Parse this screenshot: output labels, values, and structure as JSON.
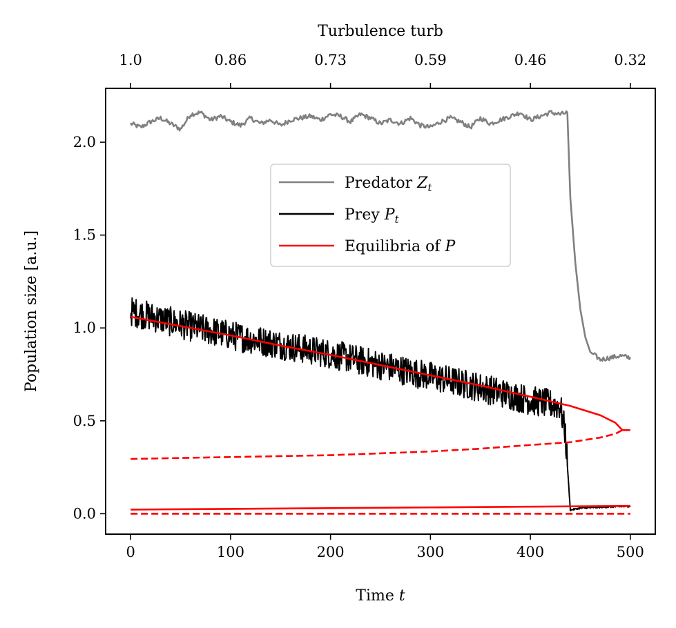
{
  "chart_data": {
    "type": "line",
    "xlabel": "Time",
    "xlabel_var": "t",
    "ylabel": "Population size [a.u.]",
    "top_xlabel": "Turbulence turb",
    "xlim": [
      -25,
      525
    ],
    "ylim": [
      -0.11,
      2.29
    ],
    "x_ticks": [
      0,
      100,
      200,
      300,
      400,
      500
    ],
    "x_tick_labels": [
      "0",
      "100",
      "200",
      "300",
      "400",
      "500"
    ],
    "y_ticks": [
      0.0,
      0.5,
      1.0,
      1.5,
      2.0
    ],
    "y_tick_labels": [
      "0.0",
      "0.5",
      "1.0",
      "1.5",
      "2.0"
    ],
    "top_x_ticks": [
      0,
      100,
      200,
      300,
      400,
      500
    ],
    "top_x_tick_labels": [
      "1.0",
      "0.86",
      "0.73",
      "0.59",
      "0.46",
      "0.32"
    ],
    "legend": {
      "placement": "upper-center",
      "entries": [
        {
          "label": "Predator",
          "var": "Z",
          "sub": "t",
          "color": "#808080",
          "style": "solid"
        },
        {
          "label": "Prey",
          "var": "P",
          "sub": "t",
          "color": "#000000",
          "style": "solid"
        },
        {
          "label": "Equilibria of",
          "var": "P",
          "sub": "",
          "color": "#ff0000",
          "style": "solid"
        }
      ]
    },
    "grid": false,
    "series": [
      {
        "name": "Predator Z_t",
        "color": "#808080",
        "x": [
          0,
          10,
          20,
          30,
          40,
          50,
          60,
          70,
          80,
          90,
          100,
          110,
          120,
          130,
          140,
          150,
          160,
          170,
          180,
          190,
          200,
          210,
          220,
          230,
          240,
          250,
          260,
          270,
          280,
          290,
          300,
          310,
          320,
          330,
          340,
          350,
          360,
          370,
          380,
          390,
          400,
          410,
          420,
          430,
          437,
          440,
          445,
          450,
          455,
          460,
          465,
          470,
          480,
          490,
          500
        ],
        "y": [
          2.1,
          2.08,
          2.11,
          2.13,
          2.1,
          2.07,
          2.15,
          2.16,
          2.12,
          2.14,
          2.11,
          2.09,
          2.13,
          2.1,
          2.12,
          2.09,
          2.12,
          2.13,
          2.14,
          2.12,
          2.15,
          2.14,
          2.11,
          2.15,
          2.13,
          2.1,
          2.12,
          2.1,
          2.13,
          2.09,
          2.08,
          2.11,
          2.13,
          2.11,
          2.08,
          2.13,
          2.1,
          2.12,
          2.14,
          2.16,
          2.12,
          2.14,
          2.16,
          2.15,
          2.16,
          1.7,
          1.35,
          1.1,
          0.95,
          0.87,
          0.85,
          0.83,
          0.84,
          0.85,
          0.84
        ]
      },
      {
        "name": "Prey P_t",
        "color": "#000000",
        "noisy": true,
        "noise_amplitude": 0.08,
        "x": [
          0,
          50,
          100,
          150,
          200,
          250,
          300,
          350,
          400,
          430,
          435,
          438,
          440,
          450,
          470,
          500
        ],
        "y": [
          1.09,
          1.02,
          0.96,
          0.91,
          0.86,
          0.8,
          0.74,
          0.68,
          0.61,
          0.58,
          0.43,
          0.18,
          0.02,
          0.03,
          0.035,
          0.04
        ]
      },
      {
        "name": "Equilibrium upper stable",
        "color": "#ff0000",
        "style": "solid",
        "x": [
          0,
          50,
          100,
          150,
          200,
          250,
          300,
          350,
          400,
          440,
          470,
          485,
          492
        ],
        "y": [
          1.06,
          1.01,
          0.96,
          0.905,
          0.855,
          0.8,
          0.745,
          0.69,
          0.63,
          0.58,
          0.53,
          0.49,
          0.45
        ]
      },
      {
        "name": "Equilibrium unstable",
        "color": "#ff0000",
        "style": "dashed",
        "x": [
          0,
          50,
          100,
          150,
          200,
          250,
          300,
          350,
          400,
          440,
          470,
          485,
          492
        ],
        "y": [
          0.295,
          0.3,
          0.305,
          0.31,
          0.315,
          0.325,
          0.335,
          0.35,
          0.37,
          0.385,
          0.41,
          0.43,
          0.45
        ]
      },
      {
        "name": "Equilibrium upper tail",
        "color": "#ff0000",
        "style": "solid",
        "x": [
          492,
          500
        ],
        "y": [
          0.45,
          0.45
        ]
      },
      {
        "name": "Equilibrium lower stable",
        "color": "#ff0000",
        "style": "solid",
        "x": [
          0,
          100,
          200,
          300,
          400,
          500
        ],
        "y": [
          0.022,
          0.026,
          0.03,
          0.034,
          0.038,
          0.042
        ]
      },
      {
        "name": "Equilibrium zero",
        "color": "#ff0000",
        "style": "dashed",
        "x": [
          0,
          500
        ],
        "y": [
          0.0,
          0.0
        ]
      }
    ]
  }
}
